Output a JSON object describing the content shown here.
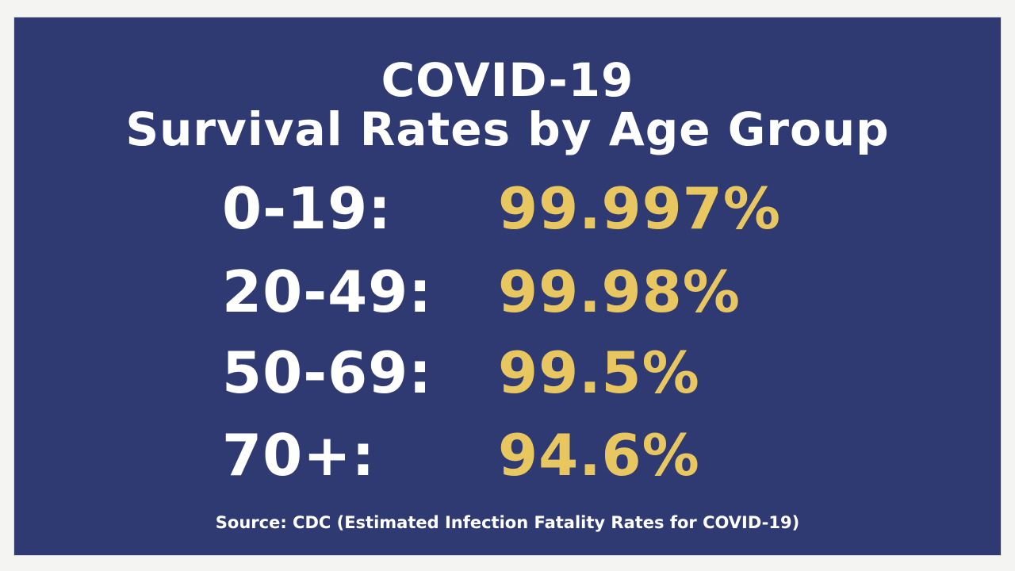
{
  "title": {
    "line1": "COVID-19",
    "line2": "Survival Rates by Age Group"
  },
  "rows": [
    {
      "age": "0-19:",
      "rate": "99.997%"
    },
    {
      "age": "20-49:",
      "rate": "99.98%"
    },
    {
      "age": "50-69:",
      "rate": "99.5%"
    },
    {
      "age": "70+:",
      "rate": "94.6%"
    }
  ],
  "source": "Source: CDC (Estimated Infection Fatality Rates for COVID-19)",
  "colors": {
    "background": "#2f3a73",
    "text": "#ffffff",
    "accent": "#e9c760"
  }
}
